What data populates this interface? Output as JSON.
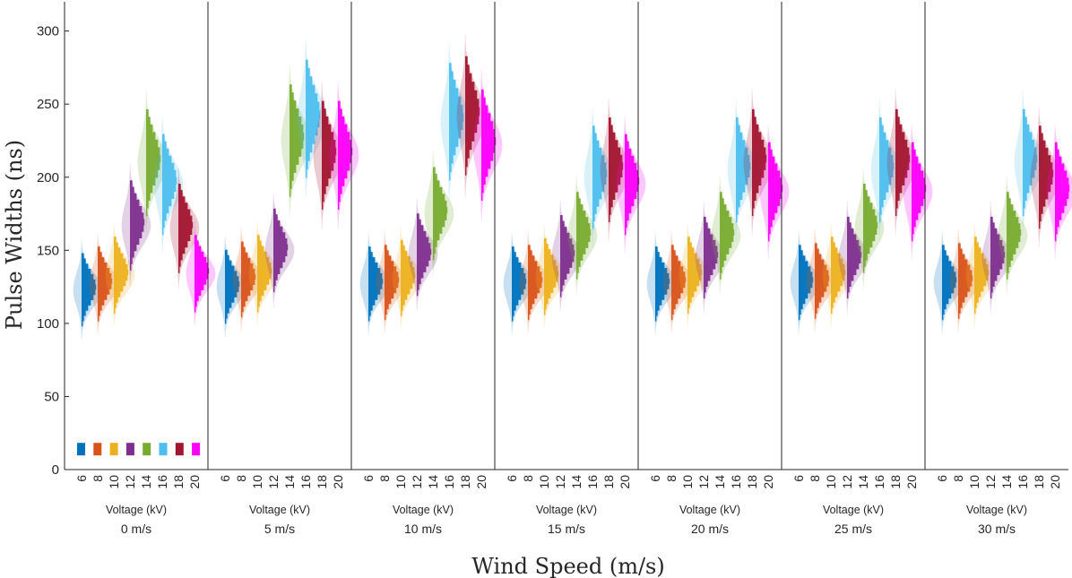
{
  "chart_data": {
    "type": "violin",
    "ylabel": "Pulse Widths (ns)",
    "xlabel": "Wind Speed (m/s)",
    "panel_xlabel": "Voltage (kV)",
    "ylim": [
      0,
      320
    ],
    "yticks": [
      0,
      50,
      100,
      150,
      200,
      250,
      300
    ],
    "voltages": [
      "6",
      "8",
      "10",
      "12",
      "14",
      "16",
      "18",
      "20"
    ],
    "series_colors": [
      "#0072BD",
      "#D95319",
      "#EDB120",
      "#7E2F8E",
      "#77AC30",
      "#4DBEEE",
      "#A2142F",
      "#FF00FF"
    ],
    "panels": [
      {
        "label": "0 m/s",
        "medians": [
          123,
          127,
          133,
          167,
          210,
          195,
          165,
          134
        ]
      },
      {
        "label": "5 m/s",
        "medians": [
          125,
          130,
          134,
          150,
          225,
          240,
          215,
          215
        ]
      },
      {
        "label": "10 m/s",
        "medians": [
          127,
          128,
          131,
          147,
          175,
          238,
          242,
          222
        ]
      },
      {
        "label": "15 m/s",
        "medians": [
          127,
          128,
          132,
          146,
          160,
          200,
          205,
          195
        ]
      },
      {
        "label": "20 m/s",
        "medians": [
          127,
          128,
          133,
          145,
          160,
          205,
          210,
          190
        ]
      },
      {
        "label": "25 m/s",
        "medians": [
          128,
          129,
          133,
          145,
          165,
          205,
          210,
          190
        ]
      },
      {
        "label": "30 m/s",
        "medians": [
          128,
          129,
          133,
          145,
          160,
          210,
          200,
          190
        ]
      }
    ]
  }
}
